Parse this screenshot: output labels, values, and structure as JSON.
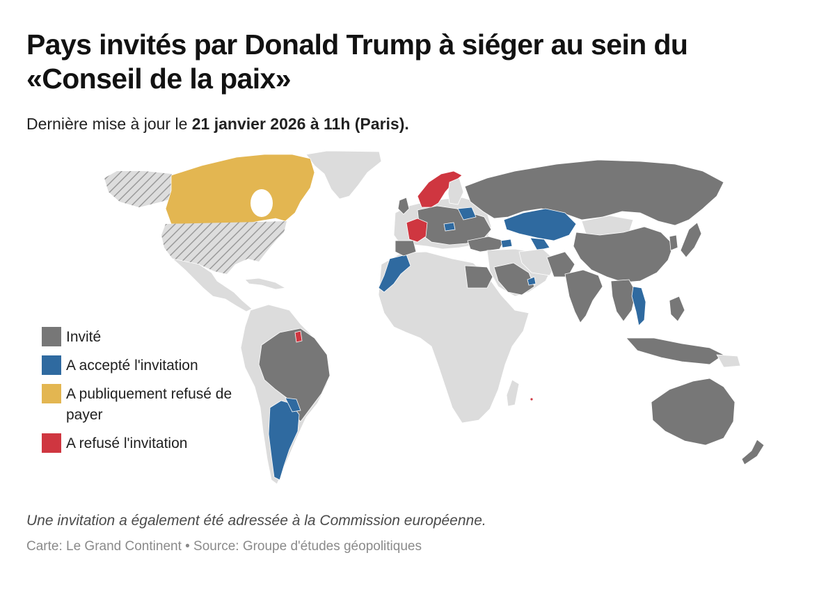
{
  "title": "Pays invités par Donald Trump à siéger au sein du «Conseil de la paix»",
  "subtitle": {
    "prefix": "Dernière mise à jour le ",
    "date": "21 janvier 2026 à 11h (Paris)."
  },
  "colors": {
    "invited": "#777777",
    "accepted": "#2f6aa0",
    "refused_to_pay": "#e3b651",
    "refused": "#cf3640",
    "other": "#dcdcdc",
    "ocean": "#ffffff",
    "hatch_lines": "#9a9a9a"
  },
  "legend": [
    {
      "key": "invited",
      "label": "Invité"
    },
    {
      "key": "accepted",
      "label": "A accepté l'invitation"
    },
    {
      "key": "refused_to_pay",
      "label": "A publiquement refusé de payer"
    },
    {
      "key": "refused",
      "label": "A refusé l'invitation"
    }
  ],
  "footnote": "Une invitation a également été adressée à la Commission européenne.",
  "credit": "Carte: Le Grand Continent • Source: Groupe d'études géopolitiques"
}
